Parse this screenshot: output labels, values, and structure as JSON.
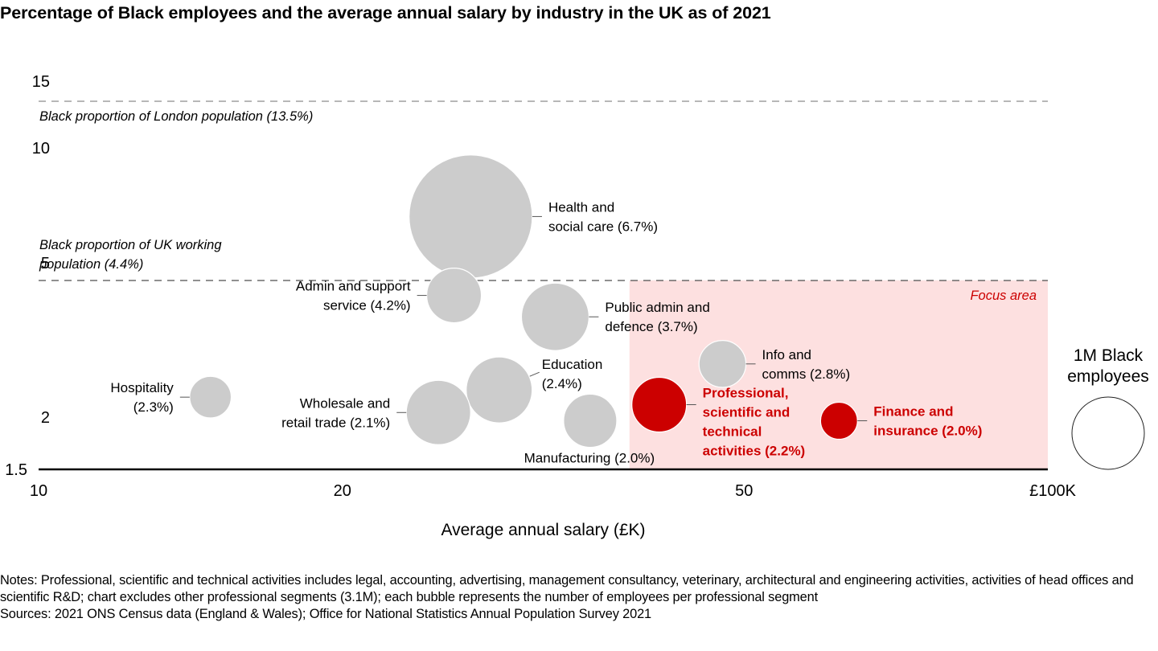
{
  "chart_data": {
    "type": "scatter",
    "subtype": "bubble",
    "title": "Percentage of Black employees and the average annual salary by industry in the UK as of 2021",
    "xlabel": "Average annual salary (£K)",
    "ylabel": "",
    "xscale": "log",
    "yscale": "log",
    "xlim": [
      10,
      100
    ],
    "ylim": [
      1.5,
      15
    ],
    "xticks": [
      {
        "value": 10,
        "label": "10"
      },
      {
        "value": 20,
        "label": "20"
      },
      {
        "value": 50,
        "label": "50"
      },
      {
        "value": 100,
        "label": "£100K"
      }
    ],
    "yticks": [
      {
        "value": 15,
        "label": "15"
      },
      {
        "value": 10,
        "label": "10"
      },
      {
        "value": 5,
        "label": "5"
      },
      {
        "value": 2,
        "label": "2"
      },
      {
        "value": 1.5,
        "label": "1.5"
      }
    ],
    "grid": false,
    "size_unit": "Black employees (millions)",
    "points": [
      {
        "name": "Health and social care",
        "label": [
          "Health and",
          "social care (6.7%)"
        ],
        "salary_k": 26.8,
        "pct_black": 6.7,
        "employees_m": 2.9,
        "highlight": false,
        "label_side": "right"
      },
      {
        "name": "Admin and support service",
        "label": [
          "Admin and support",
          "service (4.2%)"
        ],
        "salary_k": 25.8,
        "pct_black": 4.2,
        "employees_m": 0.57,
        "highlight": false,
        "label_side": "left"
      },
      {
        "name": "Public admin and defence",
        "label": [
          "Public admin and",
          "defence (3.7%)"
        ],
        "salary_k": 32.5,
        "pct_black": 3.7,
        "employees_m": 0.87,
        "highlight": false,
        "label_side": "right"
      },
      {
        "name": "Info and comms",
        "label": [
          "Info and",
          "comms (2.8%)"
        ],
        "salary_k": 47.6,
        "pct_black": 2.8,
        "employees_m": 0.42,
        "highlight": false,
        "label_side": "right"
      },
      {
        "name": "Education",
        "label": [
          "Education",
          "(2.4%)"
        ],
        "salary_k": 28.6,
        "pct_black": 2.4,
        "employees_m": 0.83,
        "highlight": false,
        "label_side": "right-up"
      },
      {
        "name": "Hospitality",
        "label": [
          "Hospitality",
          "(2.3%)"
        ],
        "salary_k": 14.8,
        "pct_black": 2.3,
        "employees_m": 0.33,
        "highlight": false,
        "label_side": "left"
      },
      {
        "name": "Professional, scientific and technical activities",
        "label": [
          "Professional,",
          "scientific and",
          "technical",
          "activities (2.2%)"
        ],
        "salary_k": 41.2,
        "pct_black": 2.2,
        "employees_m": 0.57,
        "highlight": true,
        "label_side": "right"
      },
      {
        "name": "Wholesale and retail trade",
        "label": [
          "Wholesale and",
          "retail trade (2.1%)"
        ],
        "salary_k": 24.9,
        "pct_black": 2.1,
        "employees_m": 0.79,
        "highlight": false,
        "label_side": "left"
      },
      {
        "name": "Manufacturing",
        "label": [
          "Manufacturing (2.0%)"
        ],
        "salary_k": 35.2,
        "pct_black": 2.0,
        "employees_m": 0.54,
        "highlight": false,
        "label_side": "below"
      },
      {
        "name": "Finance and insurance",
        "label": [
          "Finance and",
          "insurance (2.0%)"
        ],
        "salary_k": 62.1,
        "pct_black": 2.0,
        "employees_m": 0.26,
        "highlight": true,
        "label_side": "right"
      }
    ],
    "reference_lines": [
      {
        "value": 13.5,
        "label": [
          "Black proportion of London population (13.5%)"
        ],
        "color": "#8c8c8c"
      },
      {
        "value": 4.4,
        "label": [
          "Black proportion of UK working",
          "population (4.4%)"
        ],
        "color": "#4d4d4d"
      }
    ],
    "focus_area": {
      "label": "Focus area",
      "x_from": 38.5,
      "x_to": 100,
      "y_from": 1.5,
      "y_to": 4.4
    },
    "size_legend": {
      "label": [
        "1M Black",
        "employees"
      ],
      "employees_m": 1.0
    },
    "colors": {
      "bubble": "#cccccc",
      "highlight": "#cc0000",
      "focus_fill": "#fde0e0",
      "focus_text": "#cc0000",
      "axis": "#000000"
    }
  },
  "notes": {
    "notes_text": "Notes: Professional, scientific and technical activities includes legal, accounting, advertising, management consultancy, veterinary, architectural and engineering activities, activities of head offices and scientific R&D; chart excludes other professional segments (3.1M); each bubble represents the number of employees per professional segment",
    "sources_text": "Sources: 2021 ONS Census data (England & Wales); Office for National Statistics Annual Population Survey 2021"
  }
}
